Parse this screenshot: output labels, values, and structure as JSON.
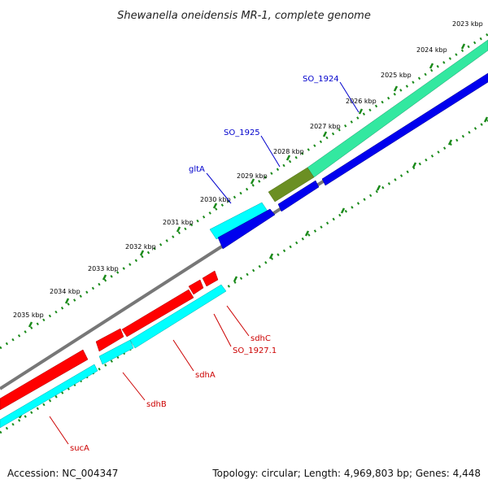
{
  "title": "Shewanella oneidensis MR-1, complete genome",
  "footer": {
    "accession": "Accession: NC_004347",
    "topology": "Topology: circular; Length: 4,969,803 bp; Genes: 4,448"
  },
  "ticks": [
    "2023 kbp",
    "2024 kbp",
    "2025 kbp",
    "2026 kbp",
    "2027 kbp",
    "2028 kbp",
    "2029 kbp",
    "2030 kbp",
    "2031 kbp",
    "2032 kbp",
    "2033 kbp",
    "2034 kbp",
    "2035 kbp"
  ],
  "genes_top": [
    {
      "label": "SO_1924",
      "color": "#0000cc"
    },
    {
      "label": "SO_1925",
      "color": "#0000cc"
    },
    {
      "label": "gltA",
      "color": "#0000cc"
    }
  ],
  "genes_bottom": [
    {
      "label": "sdhC",
      "color": "#cc0000"
    },
    {
      "label": "SO_1927.1",
      "color": "#cc0000"
    },
    {
      "label": "sdhA",
      "color": "#cc0000"
    },
    {
      "label": "sdhB",
      "color": "#cc0000"
    },
    {
      "label": "sucA",
      "color": "#cc0000"
    }
  ],
  "colors": {
    "forward_feature_teal": "#33e8a0",
    "forward_feature_olive": "#6b8f23",
    "forward_feature_cyan": "#00ffff",
    "reverse_feature_blue": "#0000ee",
    "reverse_feature_red": "#ff0000",
    "backbone": "#777777",
    "ticks": "#1a8a1a"
  }
}
